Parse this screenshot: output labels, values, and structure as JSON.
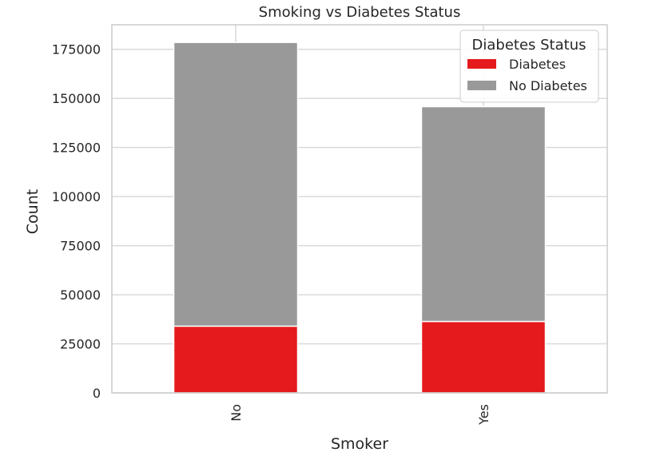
{
  "chart_data": {
    "type": "bar",
    "stacked": true,
    "title": "Smoking vs Diabetes Status",
    "xlabel": "Smoker",
    "ylabel": "Count",
    "categories": [
      "No",
      "Yes"
    ],
    "series": [
      {
        "name": "Diabetes",
        "values": [
          34000,
          36400
        ],
        "color": "#e41a1c"
      },
      {
        "name": "No Diabetes",
        "values": [
          144500,
          109400
        ],
        "color": "#999999"
      }
    ],
    "ylim": [
      0,
      187500
    ],
    "yticks": [
      0,
      25000,
      50000,
      75000,
      100000,
      125000,
      150000,
      175000
    ],
    "grid": true,
    "legend": {
      "title": "Diabetes Status",
      "position": "top-right"
    }
  }
}
